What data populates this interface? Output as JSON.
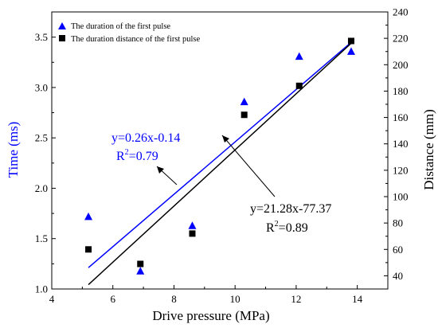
{
  "chart_data": {
    "type": "scatter",
    "xlabel": "Drive pressure (MPa)",
    "ylabel": "Time (ms)",
    "y2label": "Distance (mm)",
    "xlim": [
      4,
      15
    ],
    "ylim": [
      1.0,
      3.75
    ],
    "y2lim": [
      30,
      240
    ],
    "x_ticks": [
      4,
      6,
      8,
      10,
      12,
      14
    ],
    "y_ticks": [
      1.0,
      1.5,
      2.0,
      2.5,
      3.0,
      3.5
    ],
    "y2_ticks": [
      40,
      60,
      80,
      100,
      120,
      140,
      160,
      180,
      200,
      220,
      240
    ],
    "legend_position": "top-left",
    "grid": false,
    "series": [
      {
        "name": "The duration of the first pulse",
        "axis": "left",
        "marker": "triangle",
        "color": "#0000ff",
        "x": [
          5.2,
          6.9,
          8.6,
          10.3,
          12.1,
          13.8
        ],
        "y": [
          1.72,
          1.18,
          1.63,
          2.86,
          3.31,
          3.36
        ]
      },
      {
        "name": "The duration distance of the first pulse",
        "axis": "right",
        "marker": "square",
        "color": "#000000",
        "x": [
          5.2,
          6.9,
          8.6,
          10.3,
          12.1,
          13.8
        ],
        "y": [
          60,
          49,
          72,
          162,
          184,
          218
        ]
      }
    ],
    "fits": [
      {
        "axis": "left",
        "color": "#0000ff",
        "x_range": [
          5.2,
          13.8
        ],
        "slope": 0.26,
        "intercept": -0.14,
        "equation": "y=0.26x-0.14",
        "r2_label": "R",
        "r2_sup": "2",
        "r2_value": "=0.79"
      },
      {
        "axis": "right",
        "color": "#000000",
        "x_range": [
          5.2,
          13.8
        ],
        "slope": 21.28,
        "intercept": -77.37,
        "equation": "y=21.28x-77.37",
        "r2_label": "R",
        "r2_sup": "2",
        "r2_value": "=0.89"
      }
    ]
  }
}
